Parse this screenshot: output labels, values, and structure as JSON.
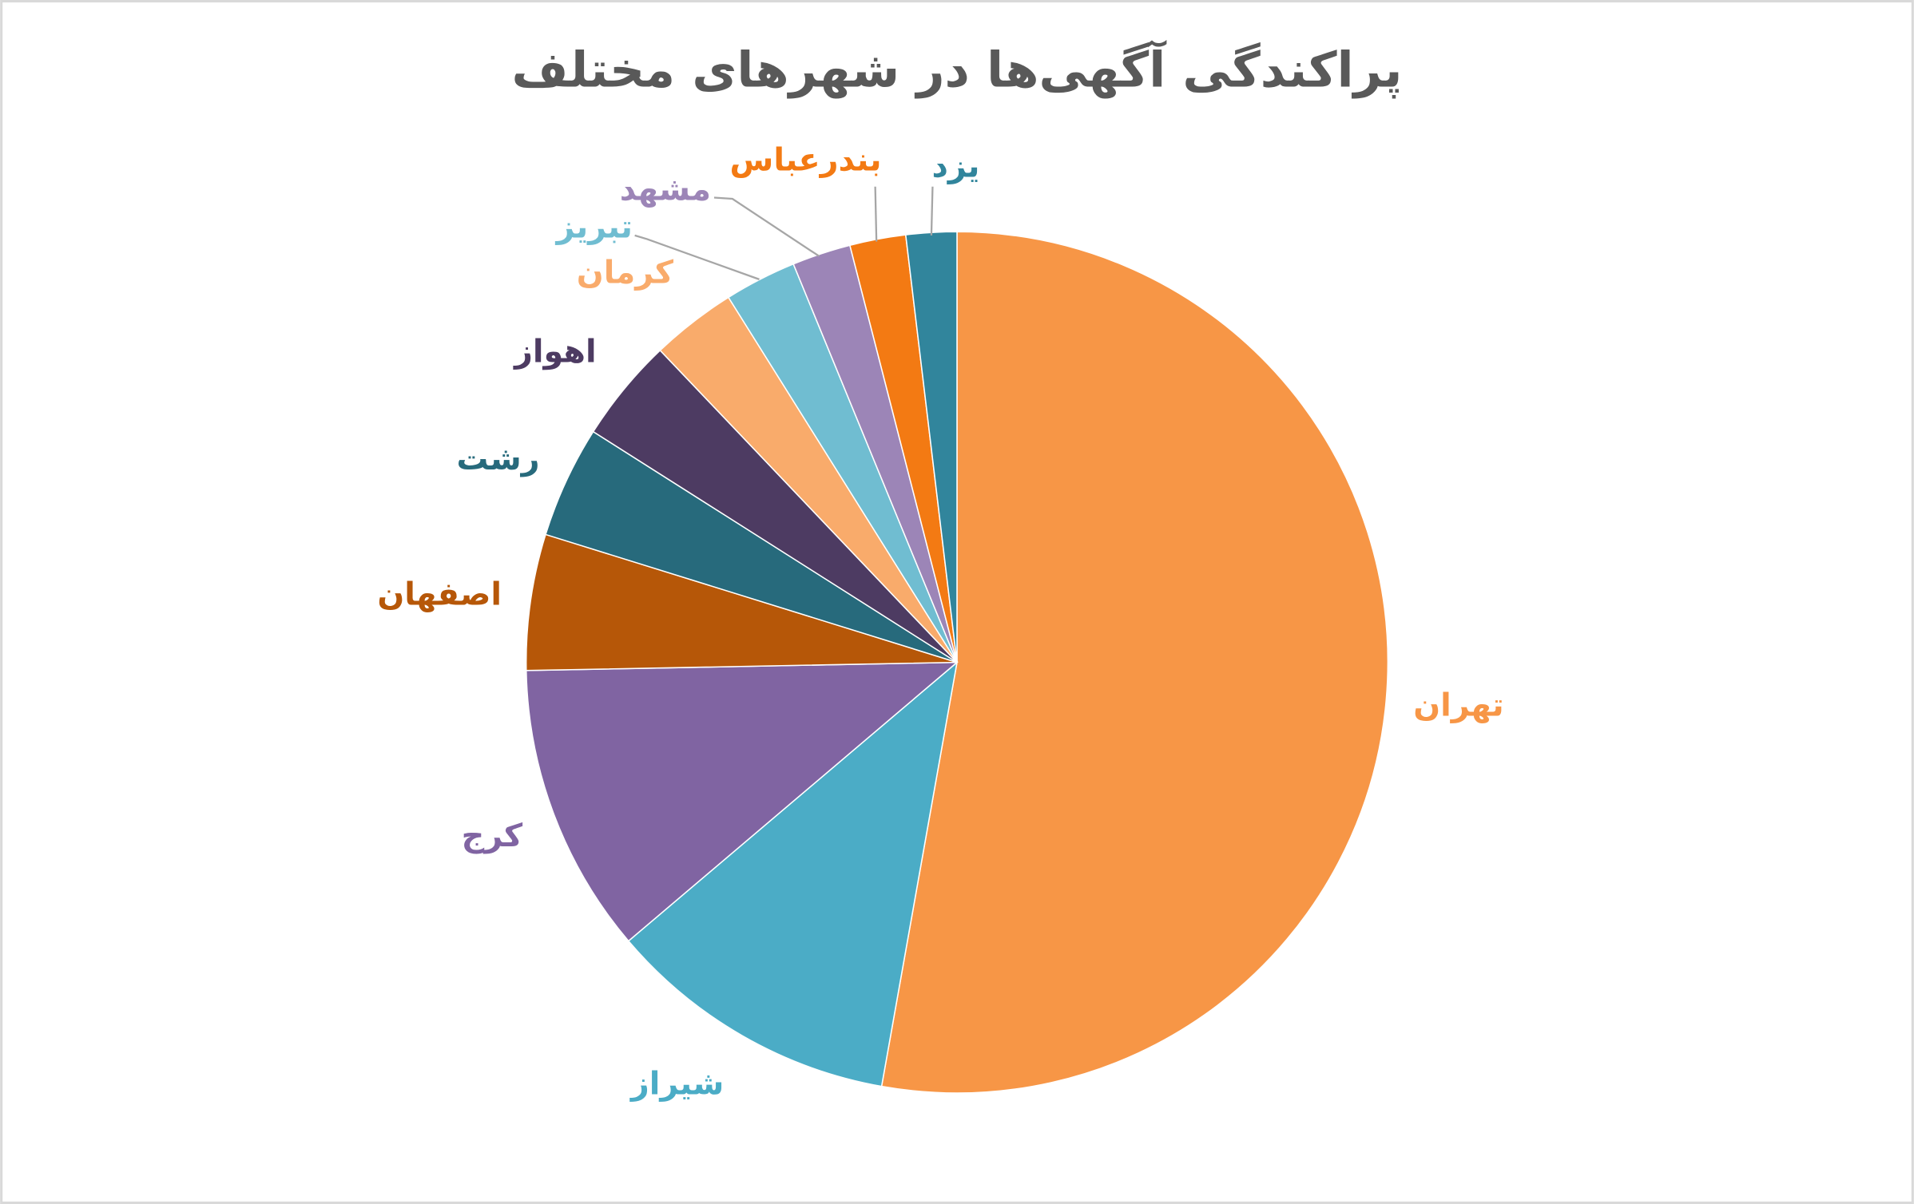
{
  "chart_data": {
    "type": "pie",
    "title": "پراکندگی  آگهی‌ها در شهرهای مختلف",
    "categories": [
      "تهران",
      "شیراز",
      "کرج",
      "اصفهان",
      "رشت",
      "اهواز",
      "کرمان",
      "تبریز",
      "مشهد",
      "بندرعباس",
      "یزد"
    ],
    "values": [
      52.8,
      11.0,
      10.9,
      5.1,
      4.2,
      3.9,
      3.2,
      2.7,
      2.2,
      2.1,
      1.9
    ],
    "colors": [
      "#f79646",
      "#4bacc6",
      "#8064a2",
      "#b65708",
      "#276a7c",
      "#4d3b62",
      "#f9ab6b",
      "#70bdd1",
      "#9c85b7",
      "#f37a13",
      "#31859c"
    ]
  }
}
